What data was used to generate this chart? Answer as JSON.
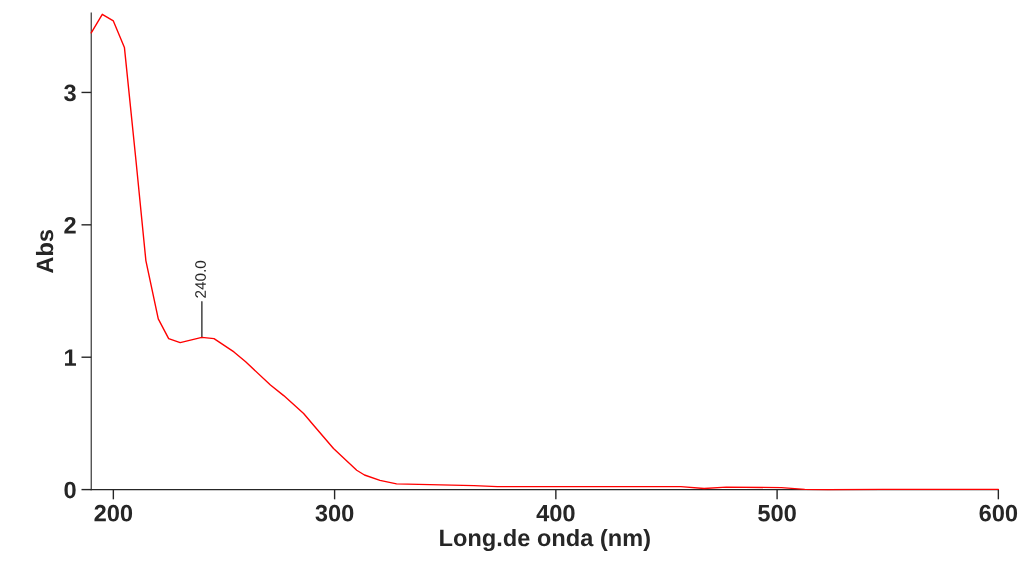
{
  "chart_data": {
    "type": "line",
    "xlabel": "Long.de onda (nm)",
    "ylabel": "Abs",
    "series": [
      {
        "color": "#ff0000",
        "x": [
          190,
          195,
          200,
          205,
          210.2,
          214.7,
          220.3,
          225,
          230.2,
          240,
          245.5,
          254.5,
          259.8,
          271,
          277,
          286,
          290.5,
          299.5,
          310,
          313.5,
          320.5,
          328,
          363,
          373.6,
          456.5,
          467,
          477,
          502,
          512.5,
          523,
          548,
          600
        ],
        "values": [
          3.45,
          3.59,
          3.54,
          3.34,
          2.49,
          1.73,
          1.29,
          1.14,
          1.11,
          1.15,
          1.14,
          1.04,
          0.965,
          0.79,
          0.71,
          0.575,
          0.486,
          0.31,
          0.146,
          0.11,
          0.07,
          0.043,
          0.03,
          0.022,
          0.022,
          0.008,
          0.019,
          0.015,
          0.002,
          0,
          0.002,
          0.002
        ]
      }
    ],
    "xlim": [
      190,
      600
    ],
    "xticks": [
      200,
      300,
      400,
      500,
      600
    ],
    "ylim": [
      0,
      3.6
    ],
    "yticks": [
      0,
      1,
      2,
      3
    ],
    "grid": false,
    "annotations": [
      {
        "text": "240.0",
        "x": 240,
        "y": 1.15
      }
    ]
  }
}
